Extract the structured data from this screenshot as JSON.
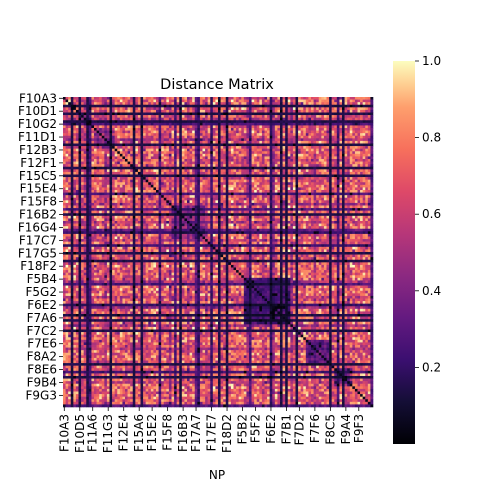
{
  "chart_data": {
    "type": "heatmap",
    "title": "Distance Matrix",
    "xlabel": "NP",
    "ylabel": "",
    "colormap": "magma",
    "value_range": [
      0.0,
      1.0
    ],
    "colorbar": {
      "ticks": [
        0.2,
        0.4,
        0.6,
        0.8,
        1.0
      ],
      "tick_labels": [
        "0.2",
        "0.4",
        "0.6",
        "0.8",
        "1.0"
      ]
    },
    "row_tick_labels": [
      "F10A3",
      "F10D1",
      "F10G2",
      "F11D1",
      "F12B3",
      "F12F1",
      "F15C5",
      "F15E4",
      "F15F8",
      "F16B2",
      "F16G4",
      "F17C7",
      "F17G5",
      "F18F2",
      "F5B4",
      "F5G2",
      "F6E2",
      "F7A6",
      "F7C2",
      "F7E6",
      "F8A2",
      "F8E6",
      "F9B4",
      "F9G3"
    ],
    "col_tick_labels": [
      "F10A3",
      "F10D5",
      "F11A6",
      "F11G3",
      "F12E4",
      "F15A6",
      "F15E2",
      "F15F8",
      "F16B3",
      "F17A7",
      "F17E7",
      "F18D2",
      "F5B2",
      "F5F2",
      "F6E2",
      "F7B1",
      "F7D2",
      "F7F6",
      "F8C5",
      "F9A4",
      "F9F3"
    ],
    "matrix_size": 120,
    "values_note": ""
  }
}
